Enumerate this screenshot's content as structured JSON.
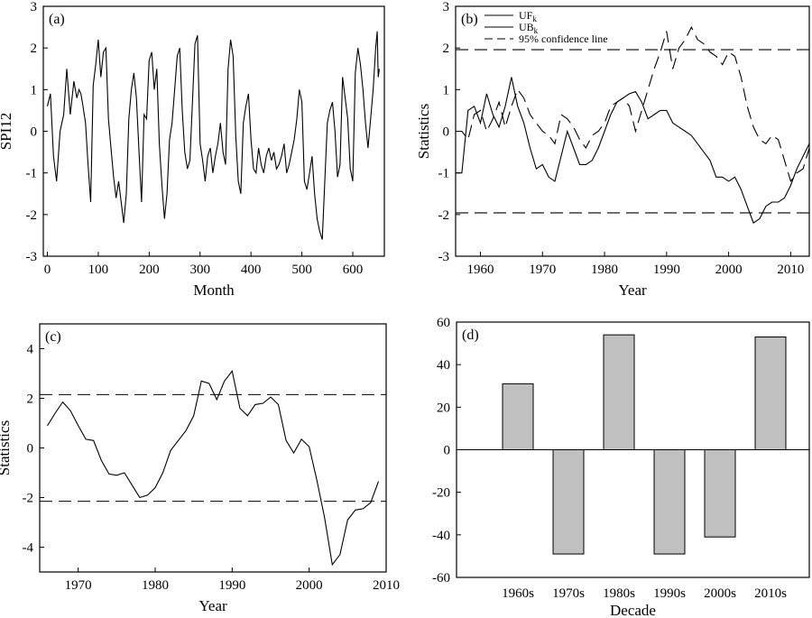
{
  "chart_data": [
    {
      "panel": "(a)",
      "type": "line",
      "xlabel": "Month",
      "ylabel": "SPI12",
      "xlim": [
        -8,
        662
      ],
      "ylim": [
        -3,
        3
      ],
      "xticks": [
        0,
        100,
        200,
        300,
        400,
        500,
        600
      ],
      "yticks": [
        -3,
        -2,
        -1,
        0,
        1,
        2,
        3
      ],
      "series": [
        {
          "x": [
            0,
            6,
            12,
            18,
            25,
            32,
            38,
            45,
            52,
            58,
            62,
            66,
            70,
            75,
            80,
            85,
            90,
            95,
            100,
            105,
            110,
            115,
            120,
            125,
            130,
            135,
            140,
            145,
            150,
            155,
            160,
            165,
            170,
            175,
            180,
            185,
            190,
            195,
            200,
            205,
            210,
            215,
            220,
            225,
            230,
            235,
            240,
            245,
            250,
            255,
            260,
            265,
            270,
            275,
            280,
            285,
            290,
            295,
            300,
            305,
            310,
            315,
            320,
            325,
            330,
            335,
            340,
            345,
            350,
            355,
            360,
            365,
            370,
            375,
            380,
            385,
            390,
            395,
            400,
            405,
            410,
            415,
            420,
            425,
            430,
            435,
            440,
            445,
            450,
            455,
            460,
            465,
            470,
            475,
            480,
            485,
            490,
            495,
            500,
            505,
            510,
            515,
            520,
            525,
            530,
            535,
            540,
            545,
            550,
            555,
            560,
            565,
            570,
            575,
            580,
            585,
            590,
            595,
            600,
            605,
            610,
            615,
            620,
            625,
            630,
            635,
            640,
            645,
            648,
            650,
            652
          ],
          "y": [
            0.6,
            0.9,
            -0.6,
            -1.2,
            0.0,
            0.4,
            1.5,
            0.4,
            1.2,
            0.8,
            1.0,
            0.9,
            0.6,
            0.2,
            -0.8,
            -1.7,
            1.1,
            1.6,
            2.2,
            1.3,
            1.9,
            2.0,
            0.3,
            -0.4,
            -1.1,
            -1.6,
            -1.2,
            -1.7,
            -2.2,
            -1.5,
            0.3,
            1.0,
            1.4,
            0.8,
            -0.5,
            -1.7,
            0.4,
            0.3,
            1.7,
            1.9,
            1.0,
            1.5,
            -0.3,
            -1.3,
            -2.1,
            -1.5,
            -0.2,
            0.2,
            1.0,
            1.8,
            2.0,
            0.5,
            -0.5,
            -0.9,
            -0.7,
            0.7,
            2.1,
            2.3,
            -0.3,
            -0.7,
            -1.2,
            -0.6,
            -0.4,
            -1.0,
            -0.6,
            -0.3,
            0.2,
            -0.5,
            -0.8,
            1.5,
            2.2,
            1.8,
            -0.1,
            -1.2,
            -1.5,
            0.2,
            0.6,
            0.9,
            -0.2,
            -0.9,
            -1.0,
            -0.4,
            -0.8,
            -1.0,
            -0.6,
            -0.4,
            -0.7,
            -0.5,
            -0.9,
            -0.8,
            -0.6,
            -0.3,
            -1.0,
            -0.8,
            -0.5,
            -0.2,
            0.3,
            1.0,
            0.7,
            -1.2,
            -1.4,
            -1.0,
            -0.6,
            -1.5,
            -2.1,
            -2.4,
            -2.6,
            -1.2,
            0.2,
            0.5,
            0.7,
            0.0,
            -1.1,
            -0.8,
            1.3,
            0.8,
            0.3,
            -0.9,
            -1.2,
            1.4,
            2.0,
            1.6,
            1.0,
            0.2,
            -0.4,
            0.3,
            1.0,
            2.0,
            2.4,
            1.3,
            1.5
          ]
        }
      ]
    },
    {
      "panel": "(b)",
      "type": "line",
      "xlabel": "Year",
      "ylabel": "Statistics",
      "xlim": [
        1956,
        2013
      ],
      "ylim": [
        -3,
        3
      ],
      "xticks": [
        1960,
        1970,
        1980,
        1990,
        2000,
        2010
      ],
      "yticks": [
        -3,
        -2,
        -1,
        0,
        1,
        2,
        3
      ],
      "legend": "top-left",
      "confidence_level": 1.96,
      "series": [
        {
          "name": "UF_k",
          "style": "solid",
          "x": [
            1956,
            1957,
            1958,
            1959,
            1960,
            1961,
            1962,
            1963,
            1964,
            1965,
            1966,
            1967,
            1968,
            1969,
            1970,
            1971,
            1972,
            1973,
            1974,
            1975,
            1976,
            1977,
            1978,
            1979,
            1980,
            1981,
            1982,
            1983,
            1984,
            1985,
            1986,
            1987,
            1988,
            1989,
            1990,
            1991,
            1992,
            1993,
            1994,
            1995,
            1996,
            1997,
            1998,
            1999,
            2000,
            2001,
            2002,
            2003,
            2004,
            2005,
            2006,
            2007,
            2008,
            2009,
            2010,
            2011,
            2012,
            2013
          ],
          "y": [
            -1.0,
            -1.0,
            0.5,
            0.6,
            0.2,
            0.9,
            0.4,
            0.1,
            0.6,
            1.3,
            0.6,
            0.2,
            -0.4,
            -0.9,
            -0.8,
            -1.1,
            -1.2,
            -0.6,
            0.0,
            -0.4,
            -0.8,
            -0.8,
            -0.7,
            -0.4,
            0.0,
            0.4,
            0.7,
            0.8,
            0.9,
            0.95,
            0.7,
            0.3,
            0.4,
            0.5,
            0.5,
            0.2,
            0.1,
            0.0,
            -0.1,
            -0.3,
            -0.5,
            -0.7,
            -1.1,
            -1.1,
            -1.2,
            -1.1,
            -1.4,
            -1.8,
            -2.2,
            -2.1,
            -1.8,
            -1.7,
            -1.7,
            -1.6,
            -1.3,
            -0.9,
            -0.6,
            -0.3
          ]
        },
        {
          "name": "UB_k",
          "style": "dashed",
          "x": [
            1956,
            1957,
            1958,
            1959,
            1960,
            1961,
            1962,
            1963,
            1964,
            1965,
            1966,
            1967,
            1968,
            1969,
            1970,
            1971,
            1972,
            1973,
            1974,
            1975,
            1976,
            1977,
            1978,
            1979,
            1980,
            1981,
            1982,
            1983,
            1984,
            1985,
            1986,
            1987,
            1988,
            1989,
            1990,
            1991,
            1992,
            1993,
            1994,
            1995,
            1996,
            1997,
            1998,
            1999,
            2000,
            2001,
            2002,
            2003,
            2004,
            2005,
            2006,
            2007,
            2008,
            2009,
            2010,
            2011,
            2012,
            2013
          ],
          "y": [
            0.0,
            0.0,
            -0.2,
            0.4,
            0.5,
            0.0,
            0.3,
            0.7,
            0.1,
            0.6,
            1.0,
            0.8,
            0.4,
            0.2,
            0.0,
            -0.1,
            -0.3,
            0.4,
            0.3,
            0.1,
            -0.2,
            -0.4,
            -0.1,
            0.0,
            0.2,
            0.6,
            0.7,
            0.8,
            0.6,
            0.0,
            0.5,
            1.0,
            1.5,
            1.9,
            2.4,
            1.5,
            2.0,
            2.2,
            2.5,
            2.2,
            2.1,
            1.9,
            1.8,
            1.6,
            1.9,
            1.8,
            1.3,
            0.6,
            0.1,
            -0.2,
            -0.3,
            -0.1,
            -0.2,
            -0.7,
            -1.2,
            -1.0,
            -0.9,
            -0.4
          ]
        }
      ],
      "legend_entries": [
        "UF",
        "UB",
        "95% confidence line"
      ],
      "legend_subscript": "k"
    },
    {
      "panel": "(c)",
      "type": "line",
      "xlabel": "Year",
      "ylabel": "Statistics",
      "xlim": [
        1965,
        2010
      ],
      "ylim": [
        -5,
        5
      ],
      "xticks": [
        1970,
        1980,
        1990,
        2000,
        2010
      ],
      "yticks": [
        -4,
        -2,
        0,
        2,
        4
      ],
      "confidence_level": 2.15,
      "series": [
        {
          "style": "solid",
          "x": [
            1966,
            1967,
            1968,
            1969,
            1970,
            1971,
            1972,
            1973,
            1974,
            1975,
            1976,
            1977,
            1978,
            1979,
            1980,
            1981,
            1982,
            1983,
            1984,
            1985,
            1986,
            1987,
            1988,
            1989,
            1990,
            1991,
            1992,
            1993,
            1994,
            1995,
            1996,
            1997,
            1998,
            1999,
            2000,
            2001,
            2002,
            2003,
            2004,
            2005,
            2006,
            2007,
            2008,
            2009
          ],
          "y": [
            0.9,
            1.4,
            1.85,
            1.5,
            0.9,
            0.35,
            0.3,
            -0.5,
            -1.05,
            -1.1,
            -1.0,
            -1.5,
            -2.0,
            -1.9,
            -1.6,
            -1.0,
            -0.1,
            0.3,
            0.7,
            1.3,
            2.7,
            2.6,
            1.95,
            2.7,
            3.1,
            1.6,
            1.3,
            1.75,
            1.8,
            2.05,
            1.75,
            0.3,
            -0.2,
            0.35,
            0.05,
            -1.3,
            -2.8,
            -4.7,
            -4.3,
            -2.9,
            -2.5,
            -2.45,
            -2.2,
            -1.35
          ]
        }
      ]
    },
    {
      "panel": "(d)",
      "type": "bar",
      "xlabel": "Decade",
      "ylim": [
        -60,
        60
      ],
      "yticks": [
        -60,
        -40,
        -20,
        0,
        20,
        40,
        60
      ],
      "categories": [
        "1960s",
        "1970s",
        "1980s",
        "1990s",
        "2000s",
        "2010s"
      ],
      "values": [
        31,
        -49,
        54,
        -49,
        -41,
        53
      ],
      "bar_color": "#c0c0c0"
    }
  ]
}
